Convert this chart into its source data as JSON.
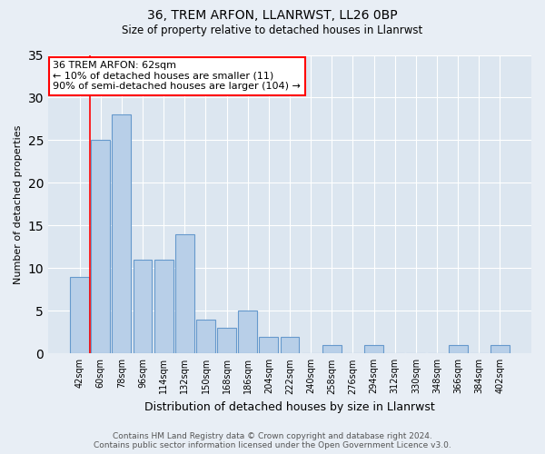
{
  "title1": "36, TREM ARFON, LLANRWST, LL26 0BP",
  "title2": "Size of property relative to detached houses in Llanrwst",
  "xlabel": "Distribution of detached houses by size in Llanrwst",
  "ylabel": "Number of detached properties",
  "categories": [
    "42sqm",
    "60sqm",
    "78sqm",
    "96sqm",
    "114sqm",
    "132sqm",
    "150sqm",
    "168sqm",
    "186sqm",
    "204sqm",
    "222sqm",
    "240sqm",
    "258sqm",
    "276sqm",
    "294sqm",
    "312sqm",
    "330sqm",
    "348sqm",
    "366sqm",
    "384sqm",
    "402sqm"
  ],
  "values": [
    9,
    25,
    28,
    11,
    11,
    14,
    4,
    3,
    5,
    2,
    2,
    0,
    1,
    0,
    1,
    0,
    0,
    0,
    1,
    0,
    1
  ],
  "bar_color": "#b8cfe8",
  "bar_edge_color": "#6699cc",
  "annotation_box_text": "36 TREM ARFON: 62sqm\n← 10% of detached houses are smaller (11)\n90% of semi-detached houses are larger (104) →",
  "annotation_box_color": "white",
  "annotation_box_edge_color": "red",
  "vline_color": "red",
  "vline_x": 0.5,
  "ylim": [
    0,
    35
  ],
  "yticks": [
    0,
    5,
    10,
    15,
    20,
    25,
    30,
    35
  ],
  "footer": "Contains HM Land Registry data © Crown copyright and database right 2024.\nContains public sector information licensed under the Open Government Licence v3.0.",
  "bg_color": "#e8eef5",
  "plot_bg_color": "#dce6f0"
}
